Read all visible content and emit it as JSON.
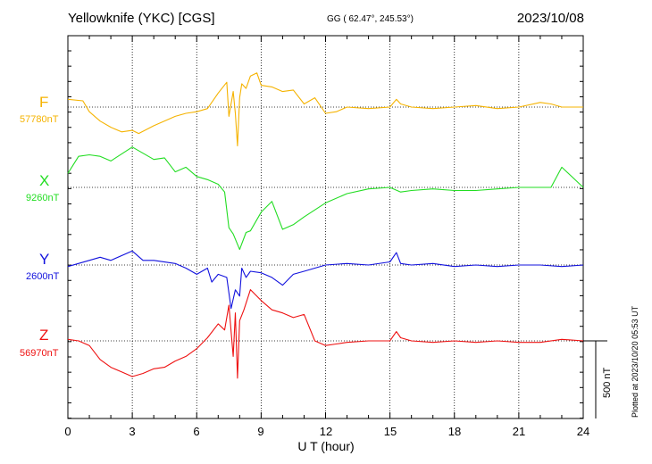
{
  "header": {
    "station": "Yellowknife (YKC)  [CGS]",
    "coords": "GG ( 62.47°, 245.53°)",
    "date": "2023/10/08"
  },
  "footer": {
    "plotted": "Plotted at 2023/10/20 05:53 UT"
  },
  "colors": {
    "F": "#f5b301",
    "X": "#22dd22",
    "Y": "#1111dd",
    "Z": "#ee1111"
  },
  "chart_data": {
    "type": "line",
    "xlabel": "U T (hour)",
    "xlim": [
      0,
      24
    ],
    "xticks": [
      "0",
      "3",
      "6",
      "9",
      "12",
      "15",
      "18",
      "21",
      "24"
    ],
    "scale_bar": "500 nT",
    "scale_bar_nT": 500,
    "series": [
      {
        "name": "F",
        "baseline": "57780nT",
        "baseline_nT": 57780,
        "x": [
          0,
          0.7,
          1,
          1.5,
          2,
          2.5,
          3,
          3.3,
          4,
          5,
          5.5,
          6,
          6.5,
          7,
          7.4,
          7.5,
          7.7,
          7.8,
          7.9,
          8,
          8.1,
          8.3,
          8.5,
          8.8,
          9,
          9.5,
          10,
          10.5,
          11,
          11.5,
          12,
          12.5,
          13,
          14,
          15,
          15.3,
          15.5,
          16,
          17,
          18,
          19,
          20,
          21,
          22,
          22.5,
          23,
          24
        ],
        "y": [
          50,
          40,
          -30,
          -90,
          -130,
          -160,
          -150,
          -170,
          -120,
          -60,
          -40,
          -30,
          -10,
          90,
          160,
          -60,
          100,
          -40,
          -250,
          60,
          150,
          120,
          200,
          220,
          140,
          130,
          100,
          110,
          20,
          60,
          -40,
          -30,
          0,
          -10,
          0,
          50,
          20,
          0,
          -10,
          0,
          10,
          -10,
          0,
          30,
          20,
          0,
          0
        ]
      },
      {
        "name": "X",
        "baseline": "9260nT",
        "baseline_nT": 9260,
        "x": [
          0,
          0.5,
          1,
          1.5,
          2,
          3,
          3.5,
          4,
          4.5,
          5,
          5.5,
          6,
          6.5,
          7,
          7.3,
          7.5,
          7.7,
          8,
          8.3,
          8.5,
          9,
          9.5,
          10,
          10.5,
          11,
          12,
          13,
          14,
          15,
          15.5,
          16,
          17,
          18,
          19,
          20,
          21,
          22,
          22.5,
          23,
          24
        ],
        "y": [
          90,
          200,
          210,
          200,
          170,
          260,
          220,
          180,
          190,
          100,
          130,
          70,
          50,
          20,
          -30,
          -260,
          -300,
          -400,
          -290,
          -280,
          -160,
          -90,
          -270,
          -240,
          -190,
          -100,
          -40,
          -10,
          0,
          -30,
          -20,
          -10,
          -20,
          -20,
          -10,
          0,
          0,
          0,
          130,
          0
        ]
      },
      {
        "name": "Y",
        "baseline": "2600nT",
        "baseline_nT": 2600,
        "x": [
          0,
          1,
          1.5,
          2,
          3,
          3.5,
          4,
          5,
          5.5,
          6,
          6.5,
          6.7,
          7,
          7.4,
          7.6,
          7.8,
          8,
          8.1,
          8.3,
          8.5,
          9,
          9.5,
          10,
          10.5,
          11,
          12,
          13,
          14,
          15,
          15.3,
          15.5,
          16,
          17,
          18,
          19,
          20,
          21,
          22,
          23,
          24
        ],
        "y": [
          -10,
          30,
          50,
          30,
          90,
          30,
          30,
          10,
          -20,
          -60,
          -20,
          -110,
          -60,
          -80,
          -280,
          -160,
          -200,
          -20,
          -80,
          -40,
          -50,
          -80,
          -130,
          -60,
          -40,
          0,
          10,
          0,
          20,
          80,
          10,
          0,
          10,
          -10,
          0,
          -10,
          0,
          0,
          -10,
          0
        ]
      },
      {
        "name": "Z",
        "baseline": "56970nT",
        "baseline_nT": 56970,
        "x": [
          0,
          0.5,
          1,
          1.5,
          2,
          2.5,
          3,
          3.5,
          4,
          4.5,
          5,
          5.5,
          6,
          6.5,
          7,
          7.3,
          7.5,
          7.7,
          7.8,
          7.9,
          8,
          8.2,
          8.5,
          9,
          9.5,
          10,
          10.5,
          11,
          11.5,
          12,
          12.5,
          13,
          14,
          15,
          15.3,
          15.5,
          16,
          17,
          18,
          19,
          20,
          21,
          22,
          23,
          24
        ],
        "y": [
          10,
          0,
          -30,
          -120,
          -170,
          -200,
          -230,
          -210,
          -180,
          -170,
          -130,
          -100,
          -50,
          20,
          110,
          70,
          230,
          -100,
          180,
          -240,
          130,
          200,
          330,
          260,
          200,
          180,
          150,
          170,
          0,
          -30,
          -20,
          -10,
          0,
          0,
          60,
          20,
          0,
          -10,
          0,
          -10,
          0,
          -10,
          -10,
          10,
          0
        ]
      }
    ]
  }
}
